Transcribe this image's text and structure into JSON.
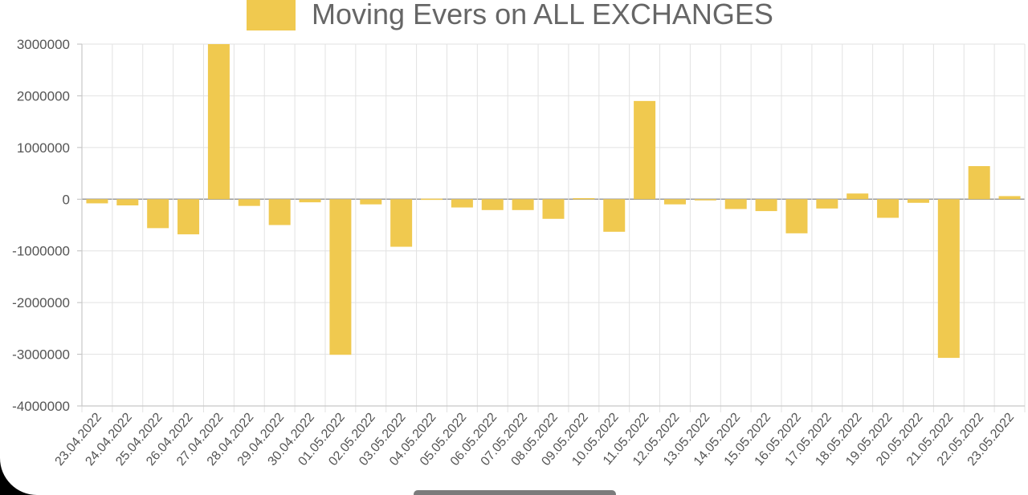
{
  "chart_data": {
    "type": "bar",
    "series": [
      {
        "name": "Moving Evers on ALL EXCHANGES",
        "color": "#f0c94f",
        "values": [
          -80000,
          -120000,
          -560000,
          -680000,
          3000000,
          -130000,
          -500000,
          -60000,
          -3010000,
          -100000,
          -920000,
          10000,
          -160000,
          -210000,
          -210000,
          -380000,
          20000,
          -630000,
          1900000,
          -100000,
          -10000,
          -190000,
          -230000,
          -660000,
          -180000,
          110000,
          -360000,
          -70000,
          -3070000,
          640000,
          60000
        ]
      }
    ],
    "categories": [
      "23.04.2022",
      "24.04.2022",
      "25.04.2022",
      "26.04.2022",
      "27.04.2022",
      "28.04.2022",
      "29.04.2022",
      "30.04.2022",
      "01.05.2022",
      "02.05.2022",
      "03.05.2022",
      "04.05.2022",
      "05.05.2022",
      "06.05.2022",
      "07.05.2022",
      "08.05.2022",
      "09.05.2022",
      "10.05.2022",
      "11.05.2022",
      "12.05.2022",
      "13.05.2022",
      "14.05.2022",
      "15.05.2022",
      "16.05.2022",
      "17.05.2022",
      "18.05.2022",
      "19.05.2022",
      "20.05.2022",
      "21.05.2022",
      "22.05.2022",
      "23.05.2022"
    ],
    "ylim": [
      -4000000,
      3000000
    ],
    "yticks": [
      "3000000",
      "2000000",
      "1000000",
      "0",
      "-1000000",
      "-2000000",
      "-3000000",
      "-4000000"
    ],
    "legend_position": "top-center",
    "grid": true
  }
}
